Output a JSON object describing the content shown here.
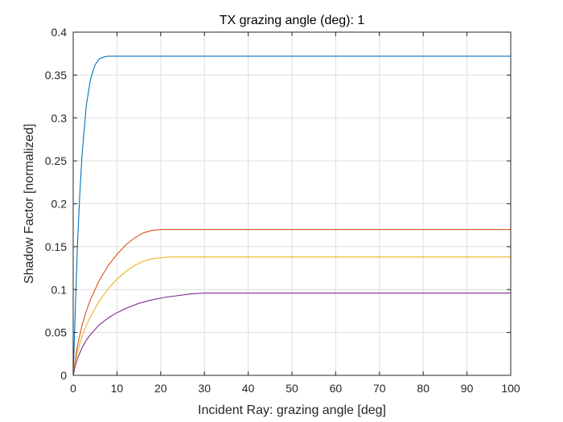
{
  "chart_data": {
    "type": "line",
    "title": "TX grazing angle (deg): 1",
    "xlabel": "Incident Ray: grazing angle [deg]",
    "ylabel": "Shadow Factor [normalized]",
    "xlim": [
      0,
      100
    ],
    "ylim": [
      0,
      0.4
    ],
    "xticks": [
      0,
      10,
      20,
      30,
      40,
      50,
      60,
      70,
      80,
      90,
      100
    ],
    "yticks": [
      0,
      0.05,
      0.1,
      0.15,
      0.2,
      0.25,
      0.3,
      0.35,
      0.4
    ],
    "xtick_labels": [
      "0",
      "10",
      "20",
      "30",
      "40",
      "50",
      "60",
      "70",
      "80",
      "90",
      "100"
    ],
    "ytick_labels": [
      "0",
      "0.05",
      "0.1",
      "0.15",
      "0.2",
      "0.25",
      "0.3",
      "0.35",
      "0.4"
    ],
    "grid": true,
    "series": [
      {
        "color": "#0072BD",
        "x": [
          0,
          0.25,
          0.5,
          1,
          1.5,
          2,
          3,
          4,
          5,
          6,
          7,
          8,
          9,
          100
        ],
        "y": [
          0,
          0.04,
          0.08,
          0.155,
          0.21,
          0.255,
          0.315,
          0.346,
          0.362,
          0.369,
          0.371,
          0.372,
          0.372,
          0.372
        ]
      },
      {
        "color": "#D95319",
        "x": [
          0,
          0.5,
          1,
          2,
          3,
          4,
          6,
          8,
          10,
          12,
          14,
          16,
          18,
          20,
          100
        ],
        "y": [
          0,
          0.02,
          0.035,
          0.058,
          0.075,
          0.089,
          0.111,
          0.128,
          0.141,
          0.152,
          0.16,
          0.166,
          0.169,
          0.17,
          0.17
        ]
      },
      {
        "color": "#EDB120",
        "x": [
          0,
          0.5,
          1,
          2,
          3,
          4,
          6,
          8,
          10,
          12,
          14,
          16,
          18,
          20,
          22,
          100
        ],
        "y": [
          0,
          0.017,
          0.028,
          0.045,
          0.058,
          0.069,
          0.087,
          0.101,
          0.112,
          0.121,
          0.128,
          0.133,
          0.136,
          0.137,
          0.138,
          0.138
        ]
      },
      {
        "color": "#7E2F8E",
        "x": [
          0,
          0.5,
          1,
          2,
          3,
          4,
          6,
          8,
          10,
          12,
          15,
          18,
          21,
          24,
          27,
          30,
          100
        ],
        "y": [
          0,
          0.012,
          0.02,
          0.032,
          0.041,
          0.048,
          0.059,
          0.067,
          0.073,
          0.078,
          0.084,
          0.088,
          0.091,
          0.093,
          0.095,
          0.096,
          0.096
        ]
      }
    ]
  }
}
